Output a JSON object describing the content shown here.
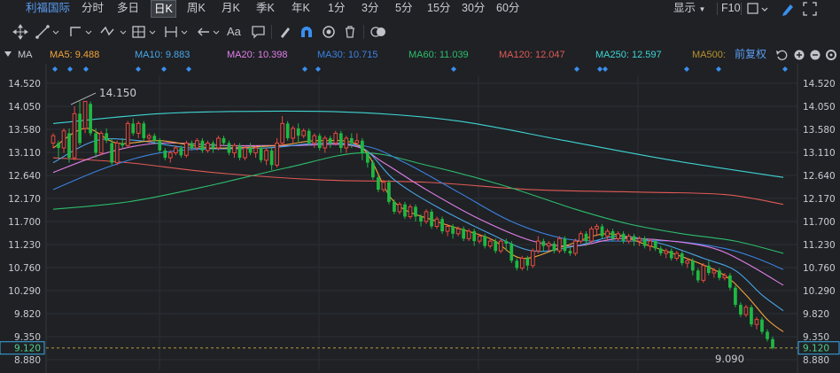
{
  "tabs": {
    "stock_name": "利福国际",
    "periods": [
      "分时",
      "多日",
      "日K",
      "周K",
      "月K",
      "季K",
      "年K",
      "1分",
      "3分",
      "5分",
      "15分",
      "30分",
      "60分"
    ],
    "active": "日K"
  },
  "right_controls": {
    "display_label": "显示",
    "f10_label": "F10"
  },
  "toolbar": {
    "text_tool": "Aa"
  },
  "ma_legend": {
    "ma5": "MA5: 9.488",
    "ma10": "MA10: 9.883",
    "ma20": "MA20: 10.398",
    "ma30": "MA30: 10.715",
    "ma60": "MA60: 11.039",
    "ma120": "MA120: 12.047",
    "ma250": "MA250: 12.597",
    "ma500": "MA500:",
    "label": "MA",
    "adjust": "前复权"
  },
  "colors": {
    "up": "#e8493f",
    "down": "#1fb842",
    "ma5": "#f2a33a",
    "ma10": "#4aa6e6",
    "ma20": "#e27ee8",
    "ma30": "#3c82e0",
    "ma60": "#2dbd6b",
    "ma120": "#e05a55",
    "ma250": "#3fd4d2",
    "ma500": "#b8922c",
    "accent": "#5b9cf0",
    "price_tag": "#3aa8e8"
  },
  "price_axis": {
    "labels": [
      "14.520",
      "14.050",
      "13.580",
      "13.110",
      "12.640",
      "12.170",
      "11.700",
      "11.230",
      "10.760",
      "10.290",
      "9.820",
      "9.350",
      "8.880"
    ],
    "current": "9.120"
  },
  "annotations": {
    "high": "14.150",
    "low": "9.090"
  },
  "chart_data": {
    "type": "candlestick",
    "ylim": [
      8.88,
      14.52
    ],
    "candles": [
      [
        13.3,
        13.45,
        13.2,
        13.5
      ],
      [
        13.3,
        13.2,
        13.0,
        13.35
      ],
      [
        13.2,
        13.55,
        13.1,
        13.6
      ],
      [
        13.5,
        13.0,
        12.9,
        13.6
      ],
      [
        13.0,
        13.9,
        12.95,
        14.05
      ],
      [
        13.9,
        13.3,
        13.25,
        14.15
      ],
      [
        13.6,
        14.15,
        13.5,
        14.15
      ],
      [
        14.1,
        13.5,
        13.45,
        14.15
      ],
      [
        13.5,
        13.1,
        13.0,
        13.6
      ],
      [
        13.1,
        13.5,
        13.05,
        13.55
      ],
      [
        13.5,
        13.35,
        13.3,
        13.6
      ],
      [
        13.3,
        12.9,
        12.85,
        13.4
      ],
      [
        12.9,
        13.3,
        12.85,
        13.35
      ],
      [
        13.3,
        13.25,
        13.2,
        13.4
      ],
      [
        13.25,
        13.7,
        13.2,
        13.75
      ],
      [
        13.7,
        13.5,
        13.45,
        13.8
      ],
      [
        13.5,
        13.7,
        13.4,
        13.75
      ],
      [
        13.7,
        13.4,
        13.35,
        13.75
      ],
      [
        13.4,
        13.45,
        13.3,
        13.5
      ],
      [
        13.45,
        13.35,
        13.3,
        13.5
      ],
      [
        13.35,
        13.15,
        13.1,
        13.4
      ],
      [
        13.15,
        13.0,
        12.95,
        13.2
      ],
      [
        13.0,
        13.1,
        12.9,
        13.15
      ],
      [
        13.1,
        13.2,
        13.05,
        13.25
      ],
      [
        13.2,
        13.05,
        13.0,
        13.25
      ],
      [
        13.05,
        13.3,
        13.0,
        13.35
      ],
      [
        13.3,
        13.2,
        13.15,
        13.35
      ],
      [
        13.2,
        13.35,
        13.15,
        13.4
      ],
      [
        13.35,
        13.15,
        13.1,
        13.4
      ],
      [
        13.15,
        13.3,
        13.1,
        13.35
      ],
      [
        13.3,
        13.2,
        13.1,
        13.35
      ],
      [
        13.2,
        13.4,
        13.15,
        13.45
      ],
      [
        13.4,
        13.3,
        13.25,
        13.45
      ],
      [
        13.3,
        13.1,
        13.05,
        13.35
      ],
      [
        13.1,
        13.25,
        13.0,
        13.3
      ],
      [
        13.25,
        13.0,
        12.95,
        13.3
      ],
      [
        13.0,
        13.2,
        12.95,
        13.25
      ],
      [
        13.2,
        13.1,
        13.05,
        13.3
      ],
      [
        13.1,
        13.2,
        13.0,
        13.25
      ],
      [
        13.2,
        12.95,
        12.9,
        13.25
      ],
      [
        12.95,
        13.15,
        12.85,
        13.2
      ],
      [
        13.15,
        12.85,
        12.75,
        13.2
      ],
      [
        12.85,
        13.3,
        12.8,
        13.4
      ],
      [
        13.3,
        13.7,
        13.25,
        13.85
      ],
      [
        13.7,
        13.4,
        13.35,
        13.75
      ],
      [
        13.4,
        13.6,
        13.3,
        13.65
      ],
      [
        13.6,
        13.45,
        13.3,
        13.7
      ],
      [
        13.45,
        13.55,
        13.4,
        13.6
      ],
      [
        13.55,
        13.3,
        13.25,
        13.6
      ],
      [
        13.3,
        13.45,
        13.2,
        13.5
      ],
      [
        13.45,
        13.2,
        13.15,
        13.5
      ],
      [
        13.2,
        13.4,
        13.1,
        13.45
      ],
      [
        13.4,
        13.3,
        13.2,
        13.45
      ],
      [
        13.3,
        13.5,
        13.25,
        13.55
      ],
      [
        13.5,
        13.2,
        13.1,
        13.55
      ],
      [
        13.2,
        13.4,
        13.1,
        13.45
      ],
      [
        13.4,
        13.3,
        13.2,
        13.5
      ],
      [
        13.3,
        13.35,
        13.25,
        13.5
      ],
      [
        13.35,
        13.1,
        12.95,
        13.4
      ],
      [
        13.1,
        12.9,
        12.8,
        13.15
      ],
      [
        12.9,
        12.6,
        12.55,
        12.95
      ],
      [
        12.6,
        12.35,
        12.3,
        12.65
      ],
      [
        12.35,
        12.5,
        12.3,
        12.55
      ],
      [
        12.5,
        12.1,
        12.05,
        12.55
      ],
      [
        12.1,
        11.9,
        11.85,
        12.15
      ],
      [
        11.9,
        12.05,
        11.85,
        12.1
      ],
      [
        12.05,
        11.8,
        11.75,
        12.1
      ],
      [
        11.8,
        12.0,
        11.75,
        12.05
      ],
      [
        12.0,
        11.8,
        11.7,
        12.05
      ],
      [
        11.8,
        11.7,
        11.6,
        11.85
      ],
      [
        11.7,
        11.9,
        11.65,
        11.95
      ],
      [
        11.9,
        11.6,
        11.55,
        11.95
      ],
      [
        11.6,
        11.75,
        11.55,
        11.8
      ],
      [
        11.75,
        11.5,
        11.45,
        11.8
      ],
      [
        11.5,
        11.6,
        11.4,
        11.65
      ],
      [
        11.6,
        11.45,
        11.35,
        11.65
      ],
      [
        11.45,
        11.55,
        11.4,
        11.6
      ],
      [
        11.55,
        11.35,
        11.3,
        11.6
      ],
      [
        11.35,
        11.5,
        11.3,
        11.55
      ],
      [
        11.5,
        11.3,
        11.2,
        11.55
      ],
      [
        11.3,
        11.4,
        11.25,
        11.45
      ],
      [
        11.4,
        11.2,
        11.15,
        11.45
      ],
      [
        11.2,
        11.3,
        11.15,
        11.35
      ],
      [
        11.3,
        11.1,
        11.05,
        11.35
      ],
      [
        11.1,
        11.3,
        11.05,
        11.35
      ],
      [
        11.3,
        11.25,
        11.1,
        11.35
      ],
      [
        11.25,
        10.9,
        10.85,
        11.3
      ],
      [
        10.9,
        10.75,
        10.7,
        10.95
      ],
      [
        10.75,
        10.95,
        10.7,
        11.0
      ],
      [
        10.95,
        10.8,
        10.7,
        11.0
      ],
      [
        10.8,
        11.1,
        10.75,
        11.15
      ],
      [
        11.1,
        11.3,
        11.05,
        11.4
      ],
      [
        11.3,
        11.2,
        11.1,
        11.35
      ],
      [
        11.2,
        11.25,
        11.1,
        11.3
      ],
      [
        11.25,
        11.1,
        11.05,
        11.3
      ],
      [
        11.1,
        11.35,
        11.05,
        11.4
      ],
      [
        11.35,
        11.1,
        11.05,
        11.4
      ],
      [
        11.1,
        11.05,
        11.0,
        11.2
      ],
      [
        11.05,
        11.3,
        11.0,
        11.35
      ],
      [
        11.3,
        11.45,
        11.25,
        11.5
      ],
      [
        11.45,
        11.3,
        11.2,
        11.5
      ],
      [
        11.3,
        11.55,
        11.25,
        11.6
      ],
      [
        11.55,
        11.6,
        11.4,
        11.65
      ],
      [
        11.6,
        11.4,
        11.35,
        11.65
      ],
      [
        11.4,
        11.5,
        11.3,
        11.55
      ],
      [
        11.5,
        11.35,
        11.3,
        11.55
      ],
      [
        11.35,
        11.45,
        11.3,
        11.5
      ],
      [
        11.45,
        11.3,
        11.25,
        11.5
      ],
      [
        11.3,
        11.4,
        11.25,
        11.45
      ],
      [
        11.4,
        11.3,
        11.2,
        11.45
      ],
      [
        11.3,
        11.35,
        11.2,
        11.4
      ],
      [
        11.35,
        11.2,
        11.15,
        11.4
      ],
      [
        11.2,
        11.3,
        11.1,
        11.35
      ],
      [
        11.3,
        11.15,
        11.1,
        11.35
      ],
      [
        11.15,
        11.05,
        11.0,
        11.2
      ],
      [
        11.05,
        11.1,
        10.95,
        11.15
      ],
      [
        11.1,
        10.95,
        10.9,
        11.15
      ],
      [
        10.95,
        11.05,
        10.9,
        11.1
      ],
      [
        11.05,
        10.85,
        10.8,
        11.1
      ],
      [
        10.85,
        10.9,
        10.75,
        10.95
      ],
      [
        10.9,
        10.7,
        10.6,
        10.95
      ],
      [
        10.7,
        10.5,
        10.45,
        10.75
      ],
      [
        10.5,
        10.8,
        10.45,
        10.85
      ],
      [
        10.8,
        10.65,
        10.6,
        10.9
      ],
      [
        10.65,
        10.7,
        10.55,
        10.75
      ],
      [
        10.7,
        10.55,
        10.5,
        10.75
      ],
      [
        10.55,
        10.6,
        10.5,
        10.65
      ],
      [
        10.6,
        10.35,
        10.3,
        10.65
      ],
      [
        10.35,
        10.0,
        9.95,
        10.4
      ],
      [
        10.0,
        9.8,
        9.75,
        10.05
      ],
      [
        9.8,
        9.95,
        9.75,
        10.0
      ],
      [
        9.95,
        9.6,
        9.55,
        10.0
      ],
      [
        9.6,
        9.7,
        9.5,
        9.75
      ],
      [
        9.7,
        9.45,
        9.4,
        9.75
      ],
      [
        9.45,
        9.3,
        9.25,
        9.5
      ],
      [
        9.3,
        9.12,
        9.09,
        9.35
      ]
    ],
    "ma": {
      "ma5": [
        [
          0,
          13.2
        ],
        [
          6,
          13.6
        ],
        [
          12,
          13.3
        ],
        [
          20,
          13.35
        ],
        [
          30,
          13.2
        ],
        [
          42,
          13.25
        ],
        [
          50,
          13.35
        ],
        [
          58,
          13.2
        ],
        [
          64,
          12.1
        ],
        [
          72,
          11.7
        ],
        [
          82,
          11.35
        ],
        [
          88,
          10.95
        ],
        [
          96,
          11.2
        ],
        [
          104,
          11.45
        ],
        [
          112,
          11.2
        ],
        [
          120,
          10.9
        ],
        [
          126,
          10.6
        ],
        [
          130,
          10.2
        ],
        [
          134,
          9.7
        ],
        [
          137,
          9.45
        ]
      ],
      "ma10": [
        [
          0,
          12.9
        ],
        [
          8,
          13.35
        ],
        [
          16,
          13.35
        ],
        [
          26,
          13.2
        ],
        [
          40,
          13.2
        ],
        [
          50,
          13.3
        ],
        [
          58,
          13.2
        ],
        [
          64,
          12.55
        ],
        [
          72,
          12.0
        ],
        [
          82,
          11.45
        ],
        [
          90,
          11.1
        ],
        [
          98,
          11.2
        ],
        [
          106,
          11.4
        ],
        [
          114,
          11.25
        ],
        [
          122,
          10.95
        ],
        [
          128,
          10.7
        ],
        [
          133,
          10.2
        ],
        [
          137,
          9.88
        ]
      ],
      "ma20": [
        [
          0,
          12.7
        ],
        [
          10,
          13.1
        ],
        [
          20,
          13.3
        ],
        [
          32,
          13.25
        ],
        [
          44,
          13.25
        ],
        [
          56,
          13.25
        ],
        [
          62,
          12.9
        ],
        [
          70,
          12.35
        ],
        [
          80,
          11.75
        ],
        [
          90,
          11.3
        ],
        [
          98,
          11.2
        ],
        [
          106,
          11.35
        ],
        [
          116,
          11.3
        ],
        [
          124,
          11.15
        ],
        [
          130,
          10.85
        ],
        [
          137,
          10.4
        ]
      ],
      "ma30": [
        [
          0,
          12.35
        ],
        [
          10,
          12.8
        ],
        [
          20,
          13.1
        ],
        [
          32,
          13.2
        ],
        [
          46,
          13.25
        ],
        [
          58,
          13.25
        ],
        [
          66,
          12.9
        ],
        [
          76,
          12.3
        ],
        [
          86,
          11.7
        ],
        [
          96,
          11.35
        ],
        [
          106,
          11.3
        ],
        [
          116,
          11.3
        ],
        [
          126,
          11.15
        ],
        [
          132,
          10.95
        ],
        [
          137,
          10.72
        ]
      ],
      "ma60": [
        [
          0,
          11.95
        ],
        [
          14,
          12.1
        ],
        [
          28,
          12.4
        ],
        [
          44,
          12.8
        ],
        [
          58,
          13.1
        ],
        [
          70,
          12.85
        ],
        [
          84,
          12.45
        ],
        [
          98,
          11.95
        ],
        [
          108,
          11.65
        ],
        [
          118,
          11.45
        ],
        [
          128,
          11.3
        ],
        [
          137,
          11.05
        ]
      ],
      "ma120": [
        [
          0,
          13.0
        ],
        [
          14,
          12.9
        ],
        [
          30,
          12.7
        ],
        [
          50,
          12.55
        ],
        [
          70,
          12.5
        ],
        [
          90,
          12.35
        ],
        [
          110,
          12.3
        ],
        [
          126,
          12.25
        ],
        [
          137,
          12.05
        ]
      ],
      "ma250": [
        [
          0,
          13.7
        ],
        [
          20,
          13.9
        ],
        [
          40,
          13.95
        ],
        [
          58,
          13.92
        ],
        [
          76,
          13.75
        ],
        [
          96,
          13.35
        ],
        [
          116,
          12.95
        ],
        [
          137,
          12.6
        ]
      ]
    }
  }
}
